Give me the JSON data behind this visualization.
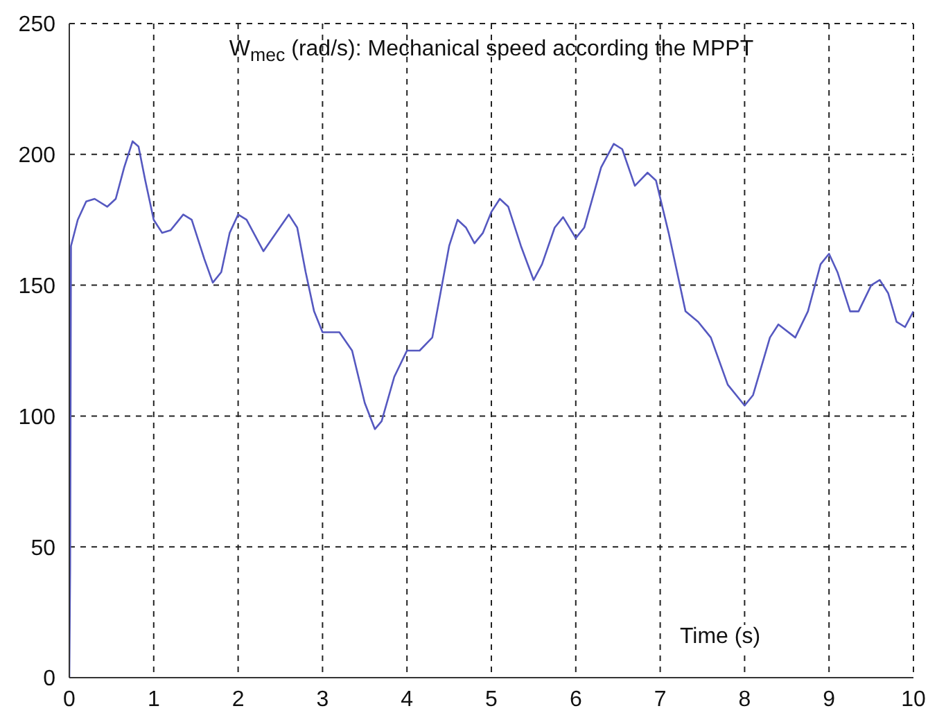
{
  "chart_data": {
    "type": "line",
    "title": "W$_{mec}$ (rad/s): Mechanical speed according the MPPT",
    "xlabel": "Time (s)",
    "x": [
      0,
      0.01,
      0.02,
      0.1,
      0.2,
      0.3,
      0.45,
      0.55,
      0.65,
      0.75,
      0.82,
      0.9,
      1.0,
      1.1,
      1.2,
      1.35,
      1.45,
      1.6,
      1.7,
      1.8,
      1.9,
      2.0,
      2.1,
      2.3,
      2.45,
      2.6,
      2.7,
      2.8,
      2.9,
      3.0,
      3.2,
      3.35,
      3.5,
      3.62,
      3.7,
      3.85,
      4.0,
      4.15,
      4.3,
      4.5,
      4.6,
      4.7,
      4.8,
      4.9,
      5.0,
      5.1,
      5.2,
      5.35,
      5.5,
      5.6,
      5.75,
      5.85,
      6.0,
      6.1,
      6.3,
      6.45,
      6.55,
      6.7,
      6.85,
      6.95,
      7.1,
      7.3,
      7.45,
      7.6,
      7.8,
      8.0,
      8.1,
      8.3,
      8.4,
      8.6,
      8.75,
      8.9,
      9.0,
      9.1,
      9.25,
      9.35,
      9.5,
      9.6,
      9.7,
      9.8,
      9.9,
      10
    ],
    "series": [
      {
        "color": "#5558c0",
        "values": [
          0,
          42,
          165,
          175,
          182,
          183,
          180,
          183,
          195,
          205,
          203,
          190,
          175,
          170,
          171,
          177,
          175,
          160,
          151,
          155,
          170,
          177,
          175,
          163,
          170,
          177,
          172,
          155,
          140,
          132,
          132,
          125,
          105,
          95,
          98,
          115,
          125,
          125,
          130,
          165,
          175,
          172,
          166,
          170,
          178,
          183,
          180,
          165,
          152,
          158,
          172,
          176,
          168,
          172,
          195,
          204,
          202,
          188,
          193,
          190,
          170,
          140,
          136,
          130,
          112,
          104,
          108,
          130,
          135,
          130,
          140,
          158,
          162,
          155,
          140,
          140,
          150,
          152,
          147,
          136,
          134,
          140
        ]
      }
    ],
    "xlim": [
      0,
      10
    ],
    "xticks": [
      0,
      1,
      2,
      3,
      4,
      5,
      6,
      7,
      8,
      9,
      10
    ],
    "ylim": [
      0,
      250
    ],
    "yticks": [
      0,
      50,
      100,
      150,
      200,
      250
    ],
    "grid": true,
    "marker": "none",
    "line_style": "solid",
    "legend": false
  }
}
